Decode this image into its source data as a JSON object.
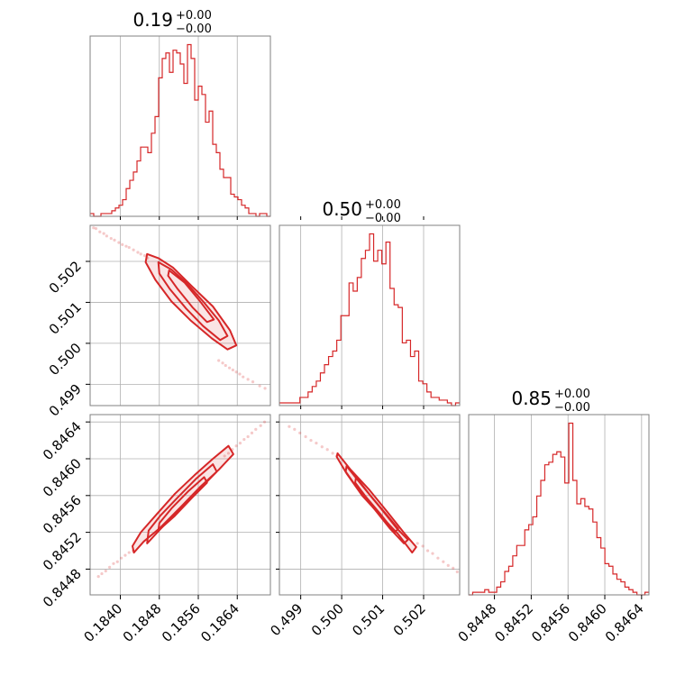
{
  "chart_data": {
    "type": "corner",
    "color": "#d62728",
    "grid": true,
    "parameters": [
      {
        "title_value": "0.19",
        "title_plus": "+0.00",
        "title_minus": "−0.00",
        "range": [
          0.18338,
          0.18708
        ],
        "ticks": [
          0.184,
          0.1848,
          0.1856,
          0.1864
        ],
        "tick_labels": [
          "0.1840",
          "0.1848",
          "0.1856",
          "0.1864"
        ],
        "hist_counts": [
          1,
          0,
          0,
          1,
          1,
          1,
          2,
          3,
          4,
          6,
          10,
          13,
          16,
          20,
          25,
          25,
          23,
          30,
          36,
          50,
          57,
          59,
          52,
          60,
          59,
          55,
          48,
          62,
          57,
          42,
          47,
          44,
          34,
          38,
          26,
          23,
          17,
          14,
          14,
          8,
          7,
          6,
          4,
          3,
          1,
          1,
          0,
          1,
          1,
          0
        ]
      },
      {
        "title_value": "0.50",
        "title_plus": "+0.00",
        "title_minus": "−0.00",
        "range": [
          0.49848,
          0.50288
        ],
        "ticks": [
          0.499,
          0.5,
          0.501,
          0.502
        ],
        "tick_labels": [
          "0.499",
          "0.500",
          "0.501",
          "0.502"
        ],
        "hist_counts": [
          1,
          1,
          1,
          1,
          1,
          3,
          3,
          5,
          7,
          9,
          12,
          15,
          18,
          20,
          24,
          33,
          33,
          45,
          42,
          47,
          54,
          57,
          63,
          53,
          57,
          52,
          60,
          43,
          37,
          36,
          23,
          24,
          18,
          20,
          9,
          8,
          5,
          3,
          3,
          2,
          2,
          1,
          0,
          1
        ]
      },
      {
        "title_value": "0.85",
        "title_plus": "+0.00",
        "title_minus": "−0.00",
        "range": [
          0.84452,
          0.84648
        ],
        "ticks": [
          0.8448,
          0.8452,
          0.8456,
          0.846,
          0.8464
        ],
        "tick_labels": [
          "0.8448",
          "0.8452",
          "0.8456",
          "0.8460",
          "0.8464"
        ],
        "hist_counts": [
          0,
          1,
          1,
          1,
          2,
          1,
          1,
          3,
          5,
          9,
          11,
          15,
          19,
          19,
          25,
          27,
          30,
          38,
          44,
          50,
          51,
          54,
          55,
          53,
          43,
          66,
          44,
          35,
          37,
          34,
          33,
          28,
          22,
          18,
          12,
          11,
          8,
          6,
          5,
          3,
          2,
          1,
          0,
          0,
          1
        ]
      }
    ],
    "pairs": [
      {
        "row": 1,
        "col": 0,
        "x_param": 0,
        "y_param": 1,
        "scatter": [
          [
            0.18345,
            0.50282
          ],
          [
            0.1835,
            0.5028
          ],
          [
            0.18358,
            0.50272
          ],
          [
            0.18366,
            0.50268
          ],
          [
            0.18372,
            0.50262
          ],
          [
            0.18381,
            0.50256
          ],
          [
            0.18388,
            0.50252
          ],
          [
            0.18397,
            0.50246
          ],
          [
            0.18404,
            0.50241
          ],
          [
            0.18412,
            0.50237
          ],
          [
            0.18418,
            0.50234
          ],
          [
            0.18427,
            0.50228
          ],
          [
            0.18436,
            0.50222
          ],
          [
            0.18442,
            0.50218
          ],
          [
            0.1845,
            0.50214
          ],
          [
            0.18456,
            0.50208
          ],
          [
            0.18602,
            0.49958
          ],
          [
            0.1861,
            0.49952
          ],
          [
            0.18616,
            0.49946
          ],
          [
            0.18624,
            0.4994
          ],
          [
            0.18631,
            0.49935
          ],
          [
            0.18638,
            0.4993
          ],
          [
            0.18645,
            0.49925
          ],
          [
            0.18652,
            0.49918
          ],
          [
            0.18662,
            0.49912
          ],
          [
            0.18672,
            0.49906
          ],
          [
            0.18686,
            0.49896
          ],
          [
            0.18697,
            0.4989
          ]
        ],
        "contours": [
          [
            [
              0.18455,
              0.50218
            ],
            [
              0.18478,
              0.50208
            ],
            [
              0.18508,
              0.50185
            ],
            [
              0.18548,
              0.50138
            ],
            [
              0.1859,
              0.5009
            ],
            [
              0.18625,
              0.50032
            ],
            [
              0.18638,
              0.49995
            ],
            [
              0.1862,
              0.49985
            ],
            [
              0.18588,
              0.50012
            ],
            [
              0.18545,
              0.50055
            ],
            [
              0.18505,
              0.50102
            ],
            [
              0.18472,
              0.50155
            ],
            [
              0.18452,
              0.50198
            ]
          ],
          [
            [
              0.18478,
              0.50198
            ],
            [
              0.18505,
              0.5018
            ],
            [
              0.18535,
              0.50148
            ],
            [
              0.1857,
              0.50102
            ],
            [
              0.18602,
              0.50056
            ],
            [
              0.1862,
              0.50018
            ],
            [
              0.18605,
              0.50008
            ],
            [
              0.1857,
              0.50042
            ],
            [
              0.18535,
              0.50085
            ],
            [
              0.18502,
              0.50132
            ],
            [
              0.1848,
              0.5017
            ]
          ],
          [
            [
              0.185,
              0.50178
            ],
            [
              0.18532,
              0.50148
            ],
            [
              0.18562,
              0.50105
            ],
            [
              0.18592,
              0.50058
            ],
            [
              0.18578,
              0.50052
            ],
            [
              0.18548,
              0.50088
            ],
            [
              0.18518,
              0.50132
            ],
            [
              0.18498,
              0.50165
            ]
          ]
        ]
      },
      {
        "row": 2,
        "col": 0,
        "x_param": 0,
        "y_param": 2,
        "scatter": [
          [
            0.18355,
            0.84472
          ],
          [
            0.18362,
            0.84475
          ],
          [
            0.1837,
            0.84478
          ],
          [
            0.18378,
            0.84482
          ],
          [
            0.18386,
            0.84486
          ],
          [
            0.18394,
            0.84488
          ],
          [
            0.18402,
            0.84492
          ],
          [
            0.1841,
            0.84495
          ],
          [
            0.18418,
            0.84498
          ],
          [
            0.18426,
            0.845
          ],
          [
            0.18614,
            0.84603
          ],
          [
            0.18622,
            0.84606
          ],
          [
            0.1863,
            0.8461
          ],
          [
            0.18638,
            0.84614
          ],
          [
            0.18646,
            0.84617
          ],
          [
            0.18654,
            0.84621
          ],
          [
            0.18662,
            0.84624
          ],
          [
            0.1867,
            0.84628
          ],
          [
            0.18678,
            0.84632
          ],
          [
            0.18688,
            0.84636
          ],
          [
            0.18696,
            0.8464
          ]
        ],
        "contours": [
          [
            [
              0.18428,
              0.84498
            ],
            [
              0.18448,
              0.8451
            ],
            [
              0.18482,
              0.84525
            ],
            [
              0.18525,
              0.84548
            ],
            [
              0.18565,
              0.8457
            ],
            [
              0.18602,
              0.84588
            ],
            [
              0.18632,
              0.84605
            ],
            [
              0.18622,
              0.84614
            ],
            [
              0.1859,
              0.846
            ],
            [
              0.18552,
              0.84582
            ],
            [
              0.18512,
              0.84562
            ],
            [
              0.18472,
              0.84538
            ],
            [
              0.18442,
              0.8452
            ],
            [
              0.18425,
              0.84505
            ]
          ],
          [
            [
              0.18455,
              0.84508
            ],
            [
              0.1849,
              0.84528
            ],
            [
              0.18528,
              0.84548
            ],
            [
              0.18565,
              0.84568
            ],
            [
              0.18598,
              0.84586
            ],
            [
              0.1859,
              0.84594
            ],
            [
              0.18555,
              0.84578
            ],
            [
              0.18518,
              0.84558
            ],
            [
              0.18482,
              0.84538
            ],
            [
              0.18458,
              0.84522
            ]
          ],
          [
            [
              0.18478,
              0.84522
            ],
            [
              0.18512,
              0.84538
            ],
            [
              0.18548,
              0.84558
            ],
            [
              0.18578,
              0.84574
            ],
            [
              0.18572,
              0.8458
            ],
            [
              0.1854,
              0.84565
            ],
            [
              0.18505,
              0.84546
            ],
            [
              0.1848,
              0.8453
            ]
          ]
        ]
      },
      {
        "row": 2,
        "col": 1,
        "x_param": 1,
        "y_param": 2,
        "scatter": [
          [
            0.49872,
            0.84635
          ],
          [
            0.49885,
            0.84632
          ],
          [
            0.49898,
            0.84628
          ],
          [
            0.49912,
            0.84624
          ],
          [
            0.49925,
            0.8462
          ],
          [
            0.49938,
            0.84617
          ],
          [
            0.49952,
            0.84613
          ],
          [
            0.49965,
            0.8461
          ],
          [
            0.49978,
            0.84606
          ],
          [
            0.49988,
            0.84603
          ],
          [
            0.50185,
            0.84508
          ],
          [
            0.50198,
            0.84505
          ],
          [
            0.5021,
            0.845
          ],
          [
            0.50222,
            0.84497
          ],
          [
            0.50235,
            0.84492
          ],
          [
            0.50248,
            0.84488
          ],
          [
            0.5026,
            0.84484
          ],
          [
            0.50272,
            0.84481
          ],
          [
            0.50282,
            0.84477
          ]
        ],
        "contours": [
          [
            [
              0.4999,
              0.84606
            ],
            [
              0.50022,
              0.84588
            ],
            [
              0.50068,
              0.84566
            ],
            [
              0.50112,
              0.84542
            ],
            [
              0.50155,
              0.84518
            ],
            [
              0.50182,
              0.84504
            ],
            [
              0.50172,
              0.84498
            ],
            [
              0.50138,
              0.84518
            ],
            [
              0.50095,
              0.84538
            ],
            [
              0.5005,
              0.8456
            ],
            [
              0.50012,
              0.84584
            ],
            [
              0.49988,
              0.84602
            ]
          ],
          [
            [
              0.50012,
              0.84592
            ],
            [
              0.50048,
              0.84572
            ],
            [
              0.50092,
              0.84548
            ],
            [
              0.50135,
              0.84524
            ],
            [
              0.50162,
              0.84512
            ],
            [
              0.50152,
              0.84508
            ],
            [
              0.50118,
              0.84524
            ],
            [
              0.50075,
              0.84548
            ],
            [
              0.50035,
              0.8457
            ],
            [
              0.5001,
              0.84586
            ]
          ],
          [
            [
              0.50035,
              0.8458
            ],
            [
              0.5007,
              0.8456
            ],
            [
              0.50108,
              0.8454
            ],
            [
              0.50138,
              0.84524
            ],
            [
              0.5013,
              0.8452
            ],
            [
              0.50098,
              0.84538
            ],
            [
              0.5006,
              0.84558
            ],
            [
              0.50033,
              0.84574
            ]
          ]
        ]
      }
    ]
  }
}
